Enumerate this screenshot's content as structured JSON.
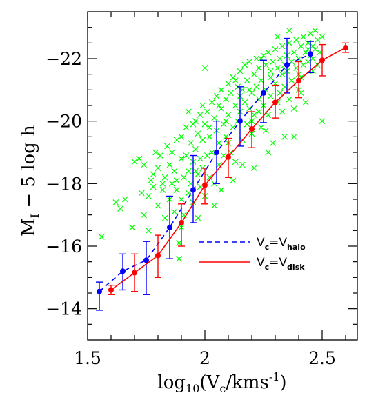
{
  "chart_data": {
    "type": "scatter",
    "title": "",
    "xlabel": "log10(Vc/kms-1)",
    "xlabel_parts": {
      "a": "log",
      "b": "10",
      "c": "(V",
      "d": "c",
      "e": "/kms",
      "f": "-1",
      "g": ")"
    },
    "ylabel": "MI − 5 log h",
    "ylabel_parts": {
      "a": "M",
      "b": "I",
      "c": " − 5 log h"
    },
    "xlim": [
      1.5,
      2.65
    ],
    "ylim": [
      -13.0,
      -23.5
    ],
    "y_inverted": true,
    "grid": false,
    "legend_position": "lower-right",
    "x_ticks": [
      {
        "v": 1.5,
        "label": "1.5"
      },
      {
        "v": 2.0,
        "label": "2"
      },
      {
        "v": 2.5,
        "label": "2.5"
      }
    ],
    "y_ticks": [
      {
        "v": -14,
        "label": "−14"
      },
      {
        "v": -16,
        "label": "−16"
      },
      {
        "v": -18,
        "label": "−18"
      },
      {
        "v": -20,
        "label": "−20"
      },
      {
        "v": -22,
        "label": "−22"
      }
    ],
    "legend": [
      {
        "prefix": "V",
        "sub1": "c",
        "mid": "=V",
        "sub2": "halo",
        "style": "dashed",
        "color": "#0000ff"
      },
      {
        "prefix": "V",
        "sub1": "c",
        "mid": "=V",
        "sub2": "disk",
        "style": "solid",
        "color": "#ff0000"
      }
    ],
    "series": [
      {
        "name": "Vc=Vhalo",
        "color": "#0000ff",
        "line": "dashed",
        "x": [
          1.55,
          1.65,
          1.75,
          1.85,
          1.95,
          2.05,
          2.15,
          2.25,
          2.35,
          2.45
        ],
        "y": [
          -14.55,
          -15.2,
          -15.55,
          -16.6,
          -17.8,
          -19.0,
          -20.0,
          -20.9,
          -21.8,
          -22.15
        ],
        "y_upper": [
          -14.85,
          -15.75,
          -16.15,
          -17.6,
          -18.9,
          -20.0,
          -21.1,
          -21.95,
          -22.65,
          -22.55
        ],
        "y_lower": [
          -13.95,
          -14.6,
          -14.45,
          -15.6,
          -16.75,
          -18.0,
          -19.2,
          -19.95,
          -20.9,
          -21.55
        ]
      },
      {
        "name": "Vc=Vdisk",
        "color": "#ff0000",
        "line": "solid",
        "x": [
          1.6,
          1.7,
          1.8,
          1.9,
          2.0,
          2.1,
          2.2,
          2.3,
          2.4,
          2.5,
          2.6
        ],
        "y": [
          -14.6,
          -15.15,
          -15.7,
          -16.75,
          -17.95,
          -18.85,
          -19.75,
          -20.6,
          -21.3,
          -21.95,
          -22.35
        ],
        "y_upper": [
          -14.75,
          -15.75,
          -16.35,
          -17.35,
          -18.5,
          -19.45,
          -20.3,
          -21.15,
          -21.9,
          -22.45,
          -22.5
        ],
        "y_lower": [
          -14.45,
          -14.55,
          -15.0,
          -16.0,
          -17.35,
          -18.2,
          -19.15,
          -20.1,
          -20.75,
          -21.45,
          -22.2
        ]
      },
      {
        "name": "observed galaxies",
        "color": "#00ff00",
        "marker": "cross",
        "points": [
          [
            1.56,
            -16.3
          ],
          [
            1.62,
            -17.4
          ],
          [
            1.64,
            -17.2
          ],
          [
            1.66,
            -17.5
          ],
          [
            1.69,
            -16.6
          ],
          [
            1.7,
            -18.7
          ],
          [
            1.72,
            -18.8
          ],
          [
            1.74,
            -18.6
          ],
          [
            1.74,
            -17.0
          ],
          [
            1.76,
            -16.5
          ],
          [
            1.76,
            -17.6
          ],
          [
            1.78,
            -17.9
          ],
          [
            1.78,
            -18.3
          ],
          [
            1.79,
            -19.0
          ],
          [
            1.8,
            -17.3
          ],
          [
            1.8,
            -18.5
          ],
          [
            1.81,
            -18.9
          ],
          [
            1.82,
            -17.8
          ],
          [
            1.83,
            -18.2
          ],
          [
            1.83,
            -16.9
          ],
          [
            1.84,
            -19.2
          ],
          [
            1.85,
            -18.6
          ],
          [
            1.85,
            -17.5
          ],
          [
            1.86,
            -18.0
          ],
          [
            1.86,
            -19.0
          ],
          [
            1.87,
            -17.1
          ],
          [
            1.87,
            -18.4
          ],
          [
            1.88,
            -19.4
          ],
          [
            1.88,
            -17.8
          ],
          [
            1.89,
            -16.1
          ],
          [
            1.89,
            -15.6
          ],
          [
            1.9,
            -18.8
          ],
          [
            1.9,
            -17.5
          ],
          [
            1.9,
            -19.5
          ],
          [
            1.91,
            -18.2
          ],
          [
            1.91,
            -17.0
          ],
          [
            1.92,
            -18.9
          ],
          [
            1.92,
            -19.8
          ],
          [
            1.93,
            -18.4
          ],
          [
            1.93,
            -17.7
          ],
          [
            1.94,
            -19.3
          ],
          [
            1.94,
            -18.0
          ],
          [
            1.95,
            -19.9
          ],
          [
            1.95,
            -17.4
          ],
          [
            1.95,
            -18.7
          ],
          [
            1.96,
            -19.1
          ],
          [
            1.96,
            -20.0
          ],
          [
            1.97,
            -18.3
          ],
          [
            1.97,
            -19.6
          ],
          [
            1.98,
            -17.9
          ],
          [
            1.98,
            -18.8
          ],
          [
            1.98,
            -20.2
          ],
          [
            1.99,
            -19.4
          ],
          [
            1.99,
            -18.5
          ],
          [
            2.0,
            -19.9
          ],
          [
            2.0,
            -17.6
          ],
          [
            2.0,
            -21.7
          ],
          [
            2.01,
            -18.9
          ],
          [
            2.01,
            -20.3
          ],
          [
            2.02,
            -19.5
          ],
          [
            2.02,
            -18.2
          ],
          [
            2.03,
            -20.6
          ],
          [
            2.03,
            -19.0
          ],
          [
            2.04,
            -18.0
          ],
          [
            2.04,
            -20.1
          ],
          [
            2.05,
            -19.7
          ],
          [
            2.05,
            -20.8
          ],
          [
            2.06,
            -18.6
          ],
          [
            2.06,
            -19.3
          ],
          [
            2.07,
            -20.4
          ],
          [
            2.07,
            -21.0
          ],
          [
            2.08,
            -19.9
          ],
          [
            2.08,
            -18.9
          ],
          [
            2.09,
            -20.7
          ],
          [
            2.09,
            -19.5
          ],
          [
            2.1,
            -21.2
          ],
          [
            2.1,
            -20.2
          ],
          [
            2.11,
            -19.0
          ],
          [
            2.11,
            -20.9
          ],
          [
            2.12,
            -21.4
          ],
          [
            2.12,
            -19.8
          ],
          [
            2.13,
            -20.5
          ],
          [
            2.13,
            -18.7
          ],
          [
            2.14,
            -21.1
          ],
          [
            2.14,
            -20.0
          ],
          [
            2.15,
            -21.6
          ],
          [
            2.15,
            -20.3
          ],
          [
            2.16,
            -19.4
          ],
          [
            2.16,
            -21.0
          ],
          [
            2.17,
            -21.8
          ],
          [
            2.17,
            -20.6
          ],
          [
            2.18,
            -19.9
          ],
          [
            2.18,
            -21.3
          ],
          [
            2.19,
            -20.4
          ],
          [
            2.19,
            -21.9
          ],
          [
            2.2,
            -20.9
          ],
          [
            2.2,
            -19.6
          ],
          [
            2.21,
            -21.5
          ],
          [
            2.21,
            -20.2
          ],
          [
            2.22,
            -22.0
          ],
          [
            2.22,
            -21.1
          ],
          [
            2.23,
            -20.7
          ],
          [
            2.23,
            -21.7
          ],
          [
            2.24,
            -19.8
          ],
          [
            2.24,
            -21.3
          ],
          [
            2.25,
            -22.1
          ],
          [
            2.25,
            -20.5
          ],
          [
            2.26,
            -21.0
          ],
          [
            2.26,
            -21.8
          ],
          [
            2.27,
            -20.2
          ],
          [
            2.27,
            -22.2
          ],
          [
            2.28,
            -21.4
          ],
          [
            2.28,
            -20.8
          ],
          [
            2.29,
            -21.9
          ],
          [
            2.29,
            -19.3
          ],
          [
            2.3,
            -22.3
          ],
          [
            2.3,
            -21.2
          ],
          [
            2.31,
            -20.6
          ],
          [
            2.31,
            -21.7
          ],
          [
            2.32,
            -22.0
          ],
          [
            2.32,
            -20.9
          ],
          [
            2.33,
            -21.5
          ],
          [
            2.33,
            -22.4
          ],
          [
            2.34,
            -21.1
          ],
          [
            2.34,
            -19.5
          ],
          [
            2.35,
            -22.1
          ],
          [
            2.35,
            -21.6
          ],
          [
            2.36,
            -20.7
          ],
          [
            2.36,
            -22.5
          ],
          [
            2.37,
            -21.3
          ],
          [
            2.37,
            -21.9
          ],
          [
            2.38,
            -22.2
          ],
          [
            2.38,
            -20.4
          ],
          [
            2.39,
            -21.7
          ],
          [
            2.39,
            -22.6
          ],
          [
            2.4,
            -21.0
          ],
          [
            2.4,
            -22.0
          ],
          [
            2.41,
            -22.4
          ],
          [
            2.41,
            -21.4
          ],
          [
            2.42,
            -22.7
          ],
          [
            2.42,
            -21.8
          ],
          [
            2.43,
            -22.2
          ],
          [
            2.43,
            -20.6
          ],
          [
            2.44,
            -22.5
          ],
          [
            2.44,
            -21.9
          ],
          [
            2.45,
            -22.8
          ],
          [
            2.45,
            -22.1
          ],
          [
            2.46,
            -22.4
          ],
          [
            2.46,
            -21.6
          ],
          [
            2.47,
            -22.9
          ],
          [
            2.47,
            -22.3
          ],
          [
            2.48,
            -22.6
          ],
          [
            2.49,
            -22.2
          ],
          [
            2.5,
            -22.7
          ],
          [
            2.5,
            -20.0
          ],
          [
            2.38,
            -19.5
          ],
          [
            2.27,
            -19.0
          ],
          [
            2.21,
            -18.5
          ],
          [
            2.12,
            -18.1
          ],
          [
            2.04,
            -17.3
          ],
          [
            1.97,
            -16.9
          ],
          [
            2.07,
            -17.8
          ],
          [
            2.16,
            -18.6
          ],
          [
            2.26,
            -19.7
          ],
          [
            2.33,
            -20.3
          ],
          [
            2.41,
            -20.9
          ],
          [
            2.1,
            -19.3
          ],
          [
            2.2,
            -20.0
          ],
          [
            1.99,
            -20.5
          ],
          [
            2.06,
            -20.5
          ],
          [
            2.13,
            -21.3
          ],
          [
            2.19,
            -21.0
          ],
          [
            2.24,
            -22.0
          ],
          [
            2.31,
            -22.7
          ],
          [
            2.36,
            -22.9
          ],
          [
            2.44,
            -22.3
          ],
          [
            2.48,
            -21.8
          ],
          [
            1.93,
            -20.3
          ],
          [
            1.96,
            -18.4
          ],
          [
            2.02,
            -19.8
          ],
          [
            2.09,
            -20.0
          ],
          [
            2.15,
            -20.8
          ],
          [
            2.23,
            -20.3
          ],
          [
            2.28,
            -21.6
          ],
          [
            2.34,
            -21.8
          ],
          [
            2.4,
            -21.5
          ],
          [
            2.46,
            -22.0
          ],
          [
            1.88,
            -18.1
          ],
          [
            1.82,
            -18.0
          ],
          [
            1.77,
            -18.1
          ],
          [
            1.73,
            -17.7
          ],
          [
            1.9,
            -16.6
          ]
        ]
      }
    ]
  }
}
